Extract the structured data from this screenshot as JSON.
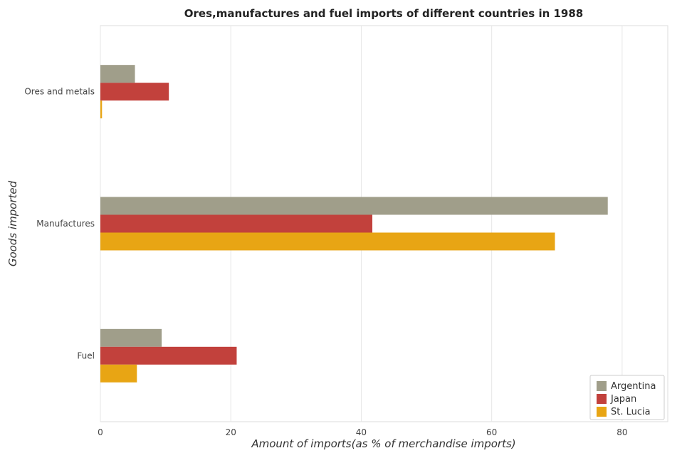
{
  "chart_data": {
    "type": "bar",
    "orientation": "horizontal",
    "title": "Ores,manufactures and fuel imports of different countries in 1988",
    "xlabel": "Amount of imports(as % of merchandise imports)",
    "ylabel": "Goods imported",
    "xlim": [
      0,
      87
    ],
    "xticks": [
      0,
      20,
      40,
      60,
      80
    ],
    "categories": [
      "Ores and metals",
      "Manufactures",
      "Fuel"
    ],
    "series": [
      {
        "name": "Argentina",
        "color": "#a09e8a",
        "values": [
          5.3,
          77.8,
          9.4
        ]
      },
      {
        "name": "Japan",
        "color": "#c2413c",
        "values": [
          10.5,
          41.7,
          20.9
        ]
      },
      {
        "name": "St. Lucia",
        "color": "#e8a514",
        "values": [
          0.25,
          69.7,
          5.6
        ]
      }
    ],
    "grid": true,
    "legend_position": "bottom-right"
  }
}
